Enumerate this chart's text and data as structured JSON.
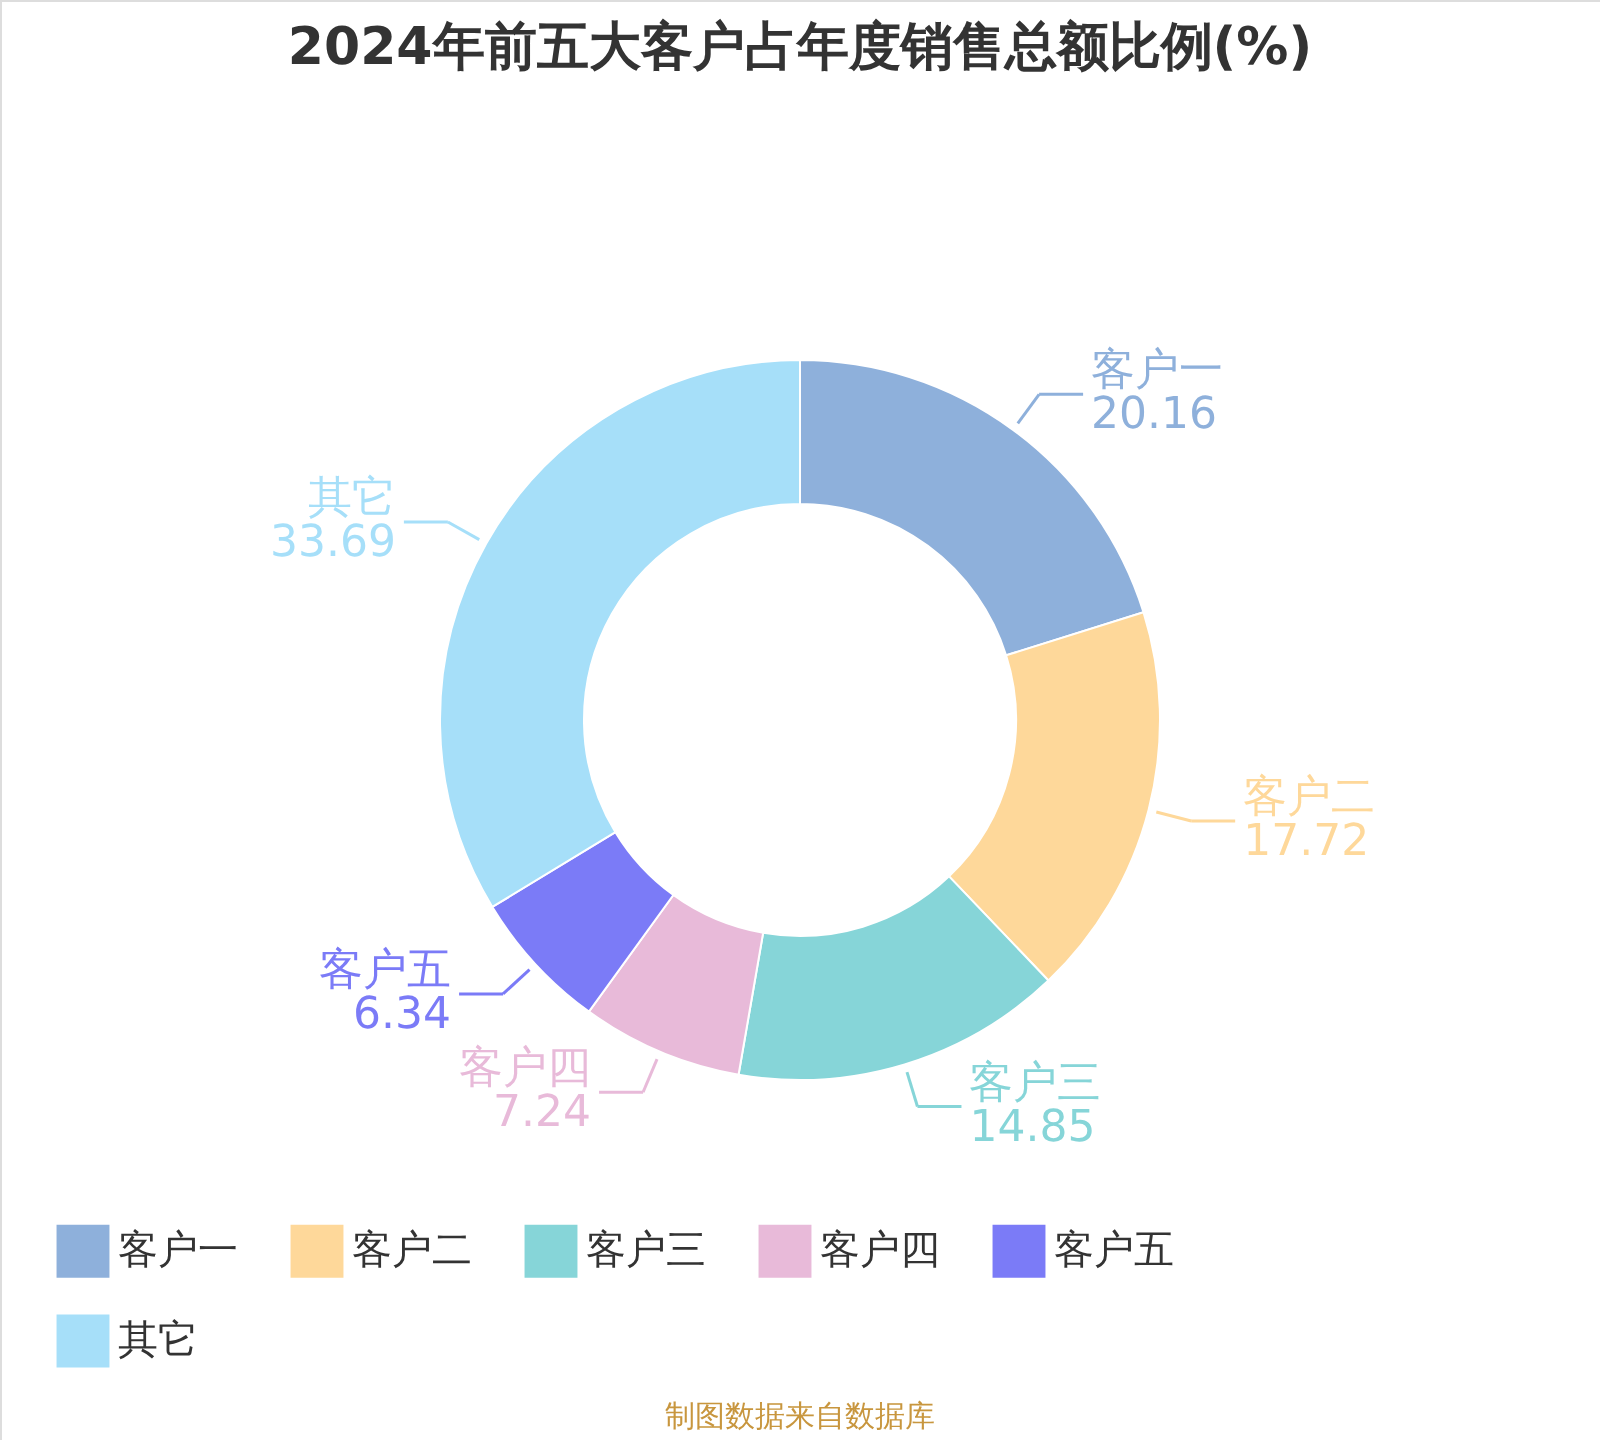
{
  "chart_data": {
    "type": "donut",
    "title": "2024年前五大客户占年度销售总额比例(%)",
    "categories": [
      "客户一",
      "客户二",
      "客户三",
      "客户四",
      "客户五",
      "其它"
    ],
    "values": [
      20.16,
      17.72,
      14.85,
      7.24,
      6.34,
      33.69
    ],
    "colors": [
      "#8eb0db",
      "#fed89a",
      "#86d5d8",
      "#e8bad9",
      "#7b7bf7",
      "#a6dff9"
    ],
    "data_labels": true,
    "legend": "bottom",
    "annotations": [
      "制图数据来自数据库"
    ]
  }
}
